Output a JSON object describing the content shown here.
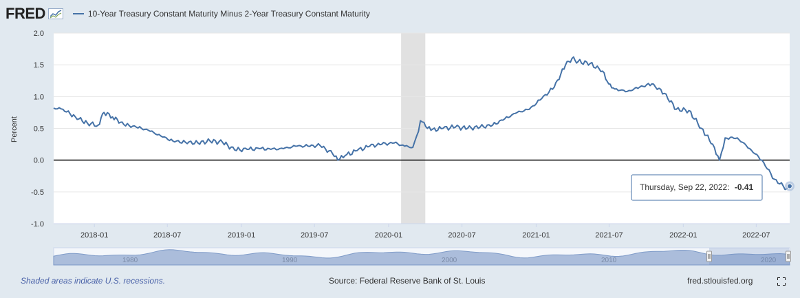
{
  "header": {
    "logo": "FRED",
    "series_title": "10-Year Treasury Constant Maturity Minus 2-Year Treasury Constant Maturity"
  },
  "footer": {
    "recession_note": "Shaded areas indicate U.S. recessions.",
    "source": "Source: Federal Reserve Bank of St. Louis",
    "site": "fred.stlouisfed.org"
  },
  "tooltip": {
    "date": "Thursday, Sep 22, 2022:",
    "value": "-0.41"
  },
  "navigator": {
    "labels": [
      "1980",
      "1990",
      "2000",
      "2010",
      "2020"
    ]
  },
  "colors": {
    "series": "#4572a7",
    "recession": "#e1e1e1",
    "background": "#e1e9f0",
    "plot": "#ffffff"
  },
  "chart_data": {
    "type": "line",
    "title": "",
    "xlabel": "",
    "ylabel": "Percent",
    "ylim": [
      -1.0,
      2.0
    ],
    "yticks": [
      "2.0",
      "1.5",
      "1.0",
      "0.5",
      "0.0",
      "-0.5",
      "-1.0"
    ],
    "xticks": [
      "2018-01",
      "2018-07",
      "2019-01",
      "2019-07",
      "2020-01",
      "2020-07",
      "2021-01",
      "2021-07",
      "2022-01",
      "2022-07"
    ],
    "recessions": [
      {
        "start": "2020-02",
        "end": "2020-04"
      }
    ],
    "series": [
      {
        "name": "10-Year Treasury Constant Maturity Minus 2-Year Treasury Constant Maturity",
        "x": [
          "2017-09-22",
          "2017-10-15",
          "2017-11-15",
          "2017-12-15",
          "2018-01-10",
          "2018-01-25",
          "2018-02-15",
          "2018-03-15",
          "2018-04-15",
          "2018-05-15",
          "2018-06-15",
          "2018-07-15",
          "2018-08-15",
          "2018-09-15",
          "2018-10-15",
          "2018-11-15",
          "2018-12-15",
          "2019-01-15",
          "2019-02-15",
          "2019-03-15",
          "2019-04-15",
          "2019-05-15",
          "2019-06-15",
          "2019-07-15",
          "2019-08-15",
          "2019-08-28",
          "2019-09-15",
          "2019-10-15",
          "2019-11-15",
          "2019-12-15",
          "2020-01-15",
          "2020-02-10",
          "2020-03-01",
          "2020-03-15",
          "2020-03-20",
          "2020-04-15",
          "2020-05-15",
          "2020-06-15",
          "2020-07-15",
          "2020-08-15",
          "2020-09-15",
          "2020-10-15",
          "2020-11-15",
          "2020-12-15",
          "2021-01-15",
          "2021-02-15",
          "2021-03-15",
          "2021-03-31",
          "2021-04-15",
          "2021-05-15",
          "2021-06-15",
          "2021-06-30",
          "2021-07-15",
          "2021-08-15",
          "2021-09-15",
          "2021-10-15",
          "2021-11-15",
          "2021-12-15",
          "2022-01-15",
          "2022-02-15",
          "2022-03-15",
          "2022-04-01",
          "2022-04-15",
          "2022-05-15",
          "2022-06-15",
          "2022-07-15",
          "2022-08-15",
          "2022-09-15",
          "2022-09-22"
        ],
        "values": [
          0.82,
          0.8,
          0.68,
          0.58,
          0.55,
          0.75,
          0.68,
          0.56,
          0.52,
          0.47,
          0.38,
          0.3,
          0.28,
          0.27,
          0.3,
          0.28,
          0.16,
          0.17,
          0.18,
          0.17,
          0.18,
          0.22,
          0.22,
          0.23,
          0.1,
          0.0,
          0.07,
          0.15,
          0.22,
          0.25,
          0.27,
          0.22,
          0.2,
          0.45,
          0.62,
          0.47,
          0.5,
          0.52,
          0.5,
          0.52,
          0.55,
          0.65,
          0.75,
          0.8,
          0.97,
          1.15,
          1.5,
          1.6,
          1.55,
          1.52,
          1.4,
          1.2,
          1.12,
          1.08,
          1.15,
          1.2,
          1.05,
          0.8,
          0.78,
          0.5,
          0.25,
          0.0,
          0.35,
          0.35,
          0.18,
          0.0,
          -0.3,
          -0.45,
          -0.41
        ]
      }
    ]
  }
}
